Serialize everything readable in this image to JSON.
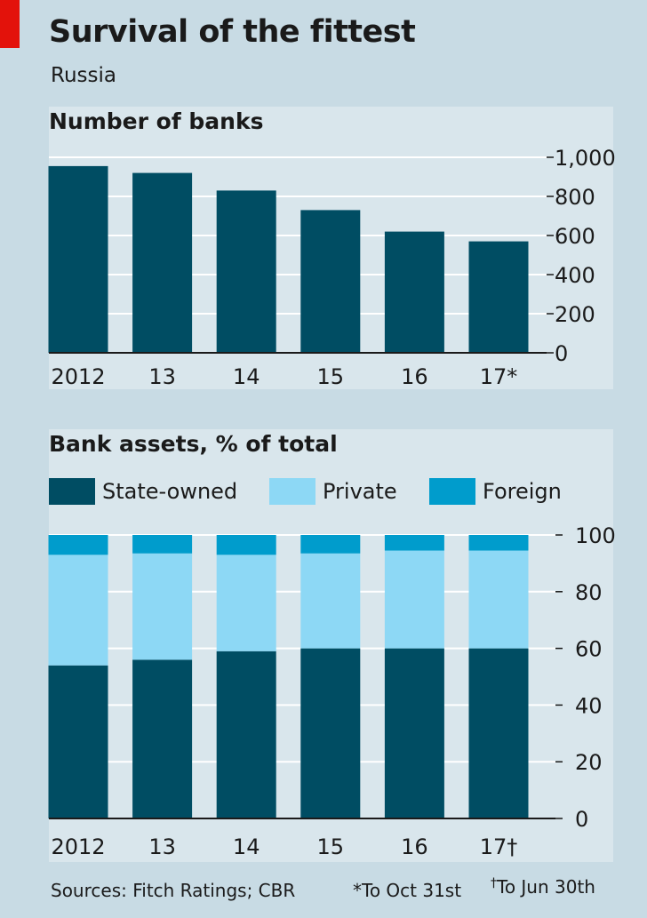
{
  "header": {
    "title": "Survival of the fittest",
    "subtitle": "Russia"
  },
  "colors": {
    "accent_red": "#e3120b",
    "state_owned": "#004d63",
    "private": "#8dd8f5",
    "foreign": "#009ccc",
    "bars": "#004d63",
    "background": "#c8dbe4",
    "panel": "#d9e6ec"
  },
  "footer": {
    "sources": "Sources: Fitch Ratings; CBR",
    "note1": "*To Oct 31st",
    "note2_mark": "†",
    "note2_text": "To Jun 30th"
  },
  "chart_data": [
    {
      "type": "bar",
      "title": "Number of banks",
      "categories": [
        "2012",
        "13",
        "14",
        "15",
        "16",
        "17*"
      ],
      "values": [
        955,
        920,
        830,
        730,
        620,
        570
      ],
      "ylim": [
        0,
        1000
      ],
      "yticks": [
        0,
        200,
        400,
        600,
        800,
        1000
      ],
      "ytick_labels": [
        "0",
        "200",
        "400",
        "600",
        "800",
        "1,000"
      ],
      "y_axis_side": "right",
      "grid": true
    },
    {
      "type": "bar",
      "stacked": true,
      "title": "Bank assets, % of total",
      "categories": [
        "2012",
        "13",
        "14",
        "15",
        "16",
        "17†"
      ],
      "series": [
        {
          "name": "State-owned",
          "values": [
            54,
            56,
            59,
            60,
            60,
            60
          ]
        },
        {
          "name": "Private",
          "values": [
            39,
            37.5,
            34,
            33.5,
            34.5,
            34.5
          ]
        },
        {
          "name": "Foreign",
          "values": [
            7,
            6.5,
            7,
            6.5,
            5.5,
            5.5
          ]
        }
      ],
      "ylim": [
        0,
        100
      ],
      "yticks": [
        0,
        20,
        40,
        60,
        80,
        100
      ],
      "y_axis_side": "right",
      "legend": "top",
      "grid": true
    }
  ]
}
